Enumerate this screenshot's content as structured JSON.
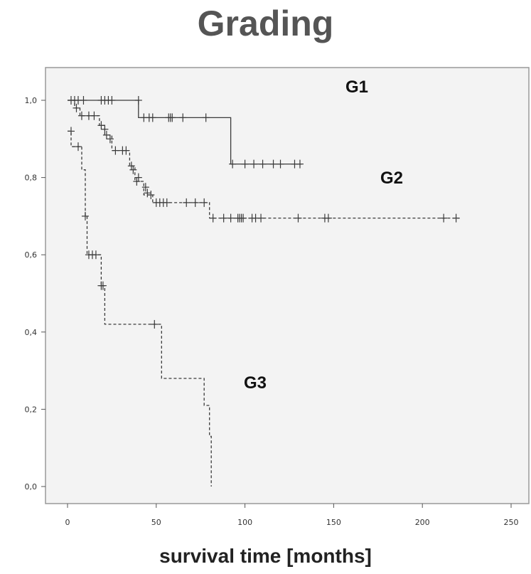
{
  "chart_data": {
    "type": "line",
    "subtype": "kaplan-meier step",
    "title": "Grading",
    "xlabel": "survival time [months]",
    "ylabel": "",
    "xlim": [
      0,
      250
    ],
    "ylim": [
      0,
      1.0
    ],
    "x_ticks": [
      0,
      50,
      100,
      150,
      200,
      250
    ],
    "x_tick_labels": [
      "0",
      "50",
      "100",
      "150",
      "200",
      "250"
    ],
    "y_ticks": [
      0,
      0.2,
      0.4,
      0.6,
      0.8,
      1.0
    ],
    "y_tick_labels": [
      "0,0",
      "0,2",
      "0,4",
      "0,6",
      "0,8",
      "1,0"
    ],
    "grid": false,
    "series": [
      {
        "name": "G1",
        "line_style": "solid",
        "steps": [
          [
            0,
            1.0
          ],
          [
            40,
            1.0
          ],
          [
            40,
            0.955
          ],
          [
            92,
            0.955
          ],
          [
            92,
            0.835
          ],
          [
            132,
            0.835
          ]
        ],
        "censored": [
          [
            2,
            1.0
          ],
          [
            4,
            1.0
          ],
          [
            6,
            1.0
          ],
          [
            9,
            1.0
          ],
          [
            19,
            1.0
          ],
          [
            21,
            1.0
          ],
          [
            23,
            1.0
          ],
          [
            25,
            1.0
          ],
          [
            40,
            1.0
          ],
          [
            43,
            0.955
          ],
          [
            46,
            0.955
          ],
          [
            48,
            0.955
          ],
          [
            57,
            0.955
          ],
          [
            58,
            0.955
          ],
          [
            59,
            0.955
          ],
          [
            65,
            0.955
          ],
          [
            78,
            0.955
          ],
          [
            93,
            0.835
          ],
          [
            100,
            0.835
          ],
          [
            105,
            0.835
          ],
          [
            110,
            0.835
          ],
          [
            116,
            0.835
          ],
          [
            120,
            0.835
          ],
          [
            128,
            0.835
          ],
          [
            131,
            0.835
          ]
        ]
      },
      {
        "name": "G2",
        "line_style": "dashed",
        "steps": [
          [
            0,
            1.0
          ],
          [
            4,
            1.0
          ],
          [
            4,
            0.98
          ],
          [
            7,
            0.98
          ],
          [
            7,
            0.96
          ],
          [
            18,
            0.96
          ],
          [
            18,
            0.935
          ],
          [
            21,
            0.935
          ],
          [
            21,
            0.91
          ],
          [
            25,
            0.91
          ],
          [
            25,
            0.87
          ],
          [
            35,
            0.87
          ],
          [
            35,
            0.83
          ],
          [
            38,
            0.83
          ],
          [
            38,
            0.79
          ],
          [
            43,
            0.79
          ],
          [
            43,
            0.755
          ],
          [
            48,
            0.755
          ],
          [
            48,
            0.735
          ],
          [
            80,
            0.735
          ],
          [
            80,
            0.695
          ],
          [
            221,
            0.695
          ]
        ],
        "censored": [
          [
            5,
            0.98
          ],
          [
            8,
            0.96
          ],
          [
            12,
            0.96
          ],
          [
            15,
            0.96
          ],
          [
            19,
            0.935
          ],
          [
            21,
            0.925
          ],
          [
            22,
            0.91
          ],
          [
            24,
            0.9
          ],
          [
            27,
            0.87
          ],
          [
            31,
            0.87
          ],
          [
            33,
            0.87
          ],
          [
            36,
            0.83
          ],
          [
            37,
            0.82
          ],
          [
            39,
            0.79
          ],
          [
            40,
            0.8
          ],
          [
            44,
            0.775
          ],
          [
            45,
            0.76
          ],
          [
            47,
            0.755
          ],
          [
            50,
            0.735
          ],
          [
            52,
            0.735
          ],
          [
            54,
            0.735
          ],
          [
            56,
            0.735
          ],
          [
            67,
            0.735
          ],
          [
            72,
            0.735
          ],
          [
            77,
            0.735
          ],
          [
            82,
            0.695
          ],
          [
            88,
            0.695
          ],
          [
            92,
            0.695
          ],
          [
            96,
            0.695
          ],
          [
            97,
            0.695
          ],
          [
            98,
            0.695
          ],
          [
            99,
            0.695
          ],
          [
            104,
            0.695
          ],
          [
            106,
            0.695
          ],
          [
            109,
            0.695
          ],
          [
            130,
            0.695
          ],
          [
            145,
            0.695
          ],
          [
            147,
            0.695
          ],
          [
            212,
            0.695
          ],
          [
            219,
            0.695
          ]
        ]
      },
      {
        "name": "G3",
        "line_style": "dashed",
        "steps": [
          [
            0,
            0.92
          ],
          [
            2,
            0.92
          ],
          [
            2,
            0.88
          ],
          [
            8,
            0.88
          ],
          [
            8,
            0.82
          ],
          [
            10,
            0.82
          ],
          [
            10,
            0.7
          ],
          [
            11,
            0.7
          ],
          [
            11,
            0.6
          ],
          [
            19,
            0.6
          ],
          [
            19,
            0.52
          ],
          [
            21,
            0.52
          ],
          [
            21,
            0.42
          ],
          [
            53,
            0.42
          ],
          [
            53,
            0.28
          ],
          [
            77,
            0.28
          ],
          [
            77,
            0.21
          ],
          [
            80,
            0.21
          ],
          [
            80,
            0.13
          ],
          [
            81,
            0.13
          ],
          [
            81,
            0.0
          ]
        ],
        "censored": [
          [
            2,
            0.92
          ],
          [
            6,
            0.88
          ],
          [
            10,
            0.7
          ],
          [
            12,
            0.6
          ],
          [
            14,
            0.6
          ],
          [
            16,
            0.6
          ],
          [
            19,
            0.52
          ],
          [
            20,
            0.52
          ],
          [
            49,
            0.42
          ]
        ]
      }
    ],
    "annotations": [
      "G1",
      "G2",
      "G3"
    ]
  },
  "labels": {
    "title": "Grading",
    "xlabel": "survival time [months]",
    "g1": "G1",
    "g2": "G2",
    "g3": "G3"
  },
  "colors": {
    "plot_background": "#f3f3f3",
    "line": "#3a3a3a",
    "frame": "#999999",
    "title": "#555555"
  }
}
